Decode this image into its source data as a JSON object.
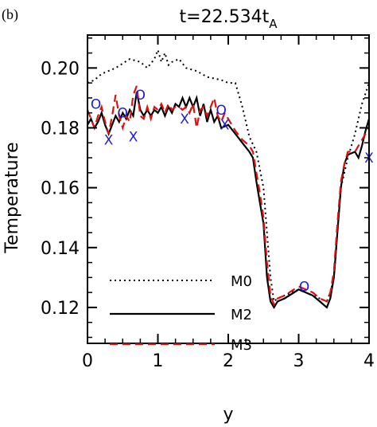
{
  "panel_label": "(b)",
  "title": {
    "main": "t=22.534t",
    "sub": "A"
  },
  "colors": {
    "M0": "#000000",
    "M2": "#000000",
    "M3": "#e01010",
    "markers": "#1a1adb"
  },
  "chart_data": {
    "type": "line",
    "xlabel": "y",
    "ylabel": "Temperature",
    "xlim": [
      0,
      4
    ],
    "ylim": [
      0.108,
      0.211
    ],
    "xticks": [
      0,
      1,
      2,
      3,
      4
    ],
    "xtick_labels": [
      "0",
      "1",
      "2",
      "3",
      "4"
    ],
    "yticks": [
      0.12,
      0.14,
      0.16,
      0.18,
      0.2
    ],
    "ytick_labels": [
      "0.12",
      "0.14",
      "0.16",
      "0.18",
      "0.20"
    ],
    "legend_position": "lower-left",
    "series": [
      {
        "name": "M0",
        "style": "dotted",
        "points": [
          [
            0,
            0.195
          ],
          [
            0.1,
            0.196
          ],
          [
            0.2,
            0.198
          ],
          [
            0.4,
            0.2
          ],
          [
            0.6,
            0.203
          ],
          [
            0.75,
            0.202
          ],
          [
            0.85,
            0.2
          ],
          [
            0.95,
            0.203
          ],
          [
            1.0,
            0.206
          ],
          [
            1.05,
            0.202
          ],
          [
            1.1,
            0.205
          ],
          [
            1.15,
            0.201
          ],
          [
            1.2,
            0.202
          ],
          [
            1.3,
            0.203
          ],
          [
            1.4,
            0.2
          ],
          [
            1.55,
            0.199
          ],
          [
            1.7,
            0.197
          ],
          [
            1.9,
            0.196
          ],
          [
            2.0,
            0.195
          ],
          [
            2.1,
            0.195
          ],
          [
            2.2,
            0.187
          ],
          [
            2.3,
            0.177
          ],
          [
            2.4,
            0.172
          ],
          [
            2.5,
            0.16
          ],
          [
            2.55,
            0.145
          ],
          [
            2.6,
            0.13
          ],
          [
            2.65,
            0.122
          ],
          [
            2.7,
            0.123
          ],
          [
            2.8,
            0.124
          ],
          [
            3.0,
            0.126
          ],
          [
            3.2,
            0.124
          ],
          [
            3.4,
            0.122
          ],
          [
            3.45,
            0.125
          ],
          [
            3.5,
            0.13
          ],
          [
            3.55,
            0.145
          ],
          [
            3.6,
            0.16
          ],
          [
            3.7,
            0.17
          ],
          [
            3.8,
            0.178
          ],
          [
            3.9,
            0.188
          ],
          [
            4.0,
            0.195
          ]
        ]
      },
      {
        "name": "M2",
        "style": "solid",
        "points": [
          [
            0,
            0.181
          ],
          [
            0.05,
            0.183
          ],
          [
            0.1,
            0.18
          ],
          [
            0.15,
            0.182
          ],
          [
            0.2,
            0.185
          ],
          [
            0.25,
            0.181
          ],
          [
            0.3,
            0.178
          ],
          [
            0.35,
            0.181
          ],
          [
            0.4,
            0.184
          ],
          [
            0.45,
            0.182
          ],
          [
            0.5,
            0.185
          ],
          [
            0.55,
            0.183
          ],
          [
            0.6,
            0.186
          ],
          [
            0.65,
            0.184
          ],
          [
            0.7,
            0.192
          ],
          [
            0.75,
            0.186
          ],
          [
            0.8,
            0.184
          ],
          [
            0.85,
            0.186
          ],
          [
            0.9,
            0.184
          ],
          [
            0.95,
            0.186
          ],
          [
            1.0,
            0.185
          ],
          [
            1.05,
            0.187
          ],
          [
            1.1,
            0.184
          ],
          [
            1.15,
            0.187
          ],
          [
            1.2,
            0.185
          ],
          [
            1.25,
            0.188
          ],
          [
            1.3,
            0.187
          ],
          [
            1.35,
            0.19
          ],
          [
            1.4,
            0.187
          ],
          [
            1.45,
            0.19
          ],
          [
            1.5,
            0.187
          ],
          [
            1.55,
            0.19
          ],
          [
            1.6,
            0.184
          ],
          [
            1.65,
            0.188
          ],
          [
            1.7,
            0.182
          ],
          [
            1.75,
            0.186
          ],
          [
            1.8,
            0.182
          ],
          [
            1.85,
            0.184
          ],
          [
            1.9,
            0.18
          ],
          [
            2.0,
            0.181
          ],
          [
            2.1,
            0.178
          ],
          [
            2.2,
            0.175
          ],
          [
            2.3,
            0.172
          ],
          [
            2.35,
            0.17
          ],
          [
            2.4,
            0.162
          ],
          [
            2.45,
            0.155
          ],
          [
            2.5,
            0.148
          ],
          [
            2.55,
            0.13
          ],
          [
            2.6,
            0.122
          ],
          [
            2.65,
            0.12
          ],
          [
            2.7,
            0.122
          ],
          [
            2.8,
            0.123
          ],
          [
            3.0,
            0.126
          ],
          [
            3.2,
            0.124
          ],
          [
            3.3,
            0.122
          ],
          [
            3.4,
            0.12
          ],
          [
            3.45,
            0.123
          ],
          [
            3.5,
            0.13
          ],
          [
            3.55,
            0.145
          ],
          [
            3.6,
            0.16
          ],
          [
            3.65,
            0.168
          ],
          [
            3.7,
            0.171
          ],
          [
            3.8,
            0.172
          ],
          [
            3.85,
            0.17
          ],
          [
            3.9,
            0.174
          ],
          [
            3.95,
            0.179
          ],
          [
            4.0,
            0.183
          ]
        ]
      },
      {
        "name": "M3",
        "style": "dashed",
        "points": [
          [
            0,
            0.186
          ],
          [
            0.05,
            0.183
          ],
          [
            0.1,
            0.18
          ],
          [
            0.15,
            0.184
          ],
          [
            0.2,
            0.187
          ],
          [
            0.25,
            0.182
          ],
          [
            0.3,
            0.178
          ],
          [
            0.35,
            0.184
          ],
          [
            0.4,
            0.191
          ],
          [
            0.45,
            0.184
          ],
          [
            0.5,
            0.18
          ],
          [
            0.55,
            0.184
          ],
          [
            0.6,
            0.182
          ],
          [
            0.65,
            0.191
          ],
          [
            0.7,
            0.194
          ],
          [
            0.75,
            0.184
          ],
          [
            0.8,
            0.183
          ],
          [
            0.85,
            0.187
          ],
          [
            0.9,
            0.183
          ],
          [
            0.95,
            0.187
          ],
          [
            1.0,
            0.186
          ],
          [
            1.05,
            0.188
          ],
          [
            1.1,
            0.185
          ],
          [
            1.15,
            0.188
          ],
          [
            1.2,
            0.186
          ],
          [
            1.25,
            0.187
          ],
          [
            1.3,
            0.187
          ],
          [
            1.35,
            0.186
          ],
          [
            1.4,
            0.187
          ],
          [
            1.45,
            0.185
          ],
          [
            1.5,
            0.188
          ],
          [
            1.55,
            0.18
          ],
          [
            1.6,
            0.186
          ],
          [
            1.65,
            0.187
          ],
          [
            1.7,
            0.184
          ],
          [
            1.75,
            0.187
          ],
          [
            1.8,
            0.19
          ],
          [
            1.85,
            0.184
          ],
          [
            1.9,
            0.182
          ],
          [
            1.95,
            0.185
          ],
          [
            2.0,
            0.183
          ],
          [
            2.1,
            0.179
          ],
          [
            2.2,
            0.176
          ],
          [
            2.3,
            0.174
          ],
          [
            2.35,
            0.172
          ],
          [
            2.4,
            0.165
          ],
          [
            2.45,
            0.158
          ],
          [
            2.5,
            0.15
          ],
          [
            2.55,
            0.135
          ],
          [
            2.6,
            0.124
          ],
          [
            2.65,
            0.121
          ],
          [
            2.7,
            0.123
          ],
          [
            2.8,
            0.124
          ],
          [
            3.0,
            0.127
          ],
          [
            3.2,
            0.125
          ],
          [
            3.3,
            0.123
          ],
          [
            3.4,
            0.122
          ],
          [
            3.45,
            0.125
          ],
          [
            3.5,
            0.132
          ],
          [
            3.55,
            0.148
          ],
          [
            3.6,
            0.162
          ],
          [
            3.65,
            0.168
          ],
          [
            3.7,
            0.172
          ],
          [
            3.8,
            0.172
          ],
          [
            3.85,
            0.174
          ],
          [
            3.9,
            0.176
          ],
          [
            3.95,
            0.178
          ],
          [
            4.0,
            0.18
          ]
        ]
      }
    ],
    "markers_o": [
      [
        0.12,
        0.188
      ],
      [
        0.5,
        0.185
      ],
      [
        0.75,
        0.191
      ],
      [
        1.9,
        0.186
      ],
      [
        3.08,
        0.127
      ]
    ],
    "markers_x": [
      [
        0.3,
        0.176
      ],
      [
        0.65,
        0.177
      ],
      [
        1.38,
        0.183
      ],
      [
        1.95,
        0.181
      ],
      [
        4.0,
        0.17
      ]
    ]
  }
}
